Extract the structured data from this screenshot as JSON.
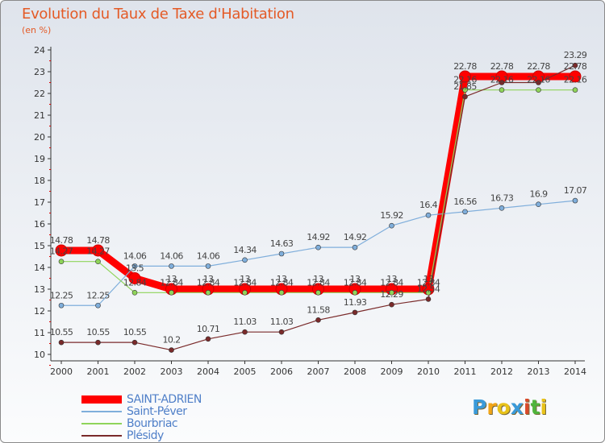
{
  "title": "Evolution du Taux de Taxe d'Habitation",
  "unit": "(en %)",
  "logo": {
    "letters": [
      "P",
      "r",
      "o",
      "x",
      "i",
      "t",
      "i"
    ],
    "colors": [
      "#3a9ad9",
      "#f2a516",
      "#e8c21a",
      "#3a9ad9",
      "#d94a2a",
      "#4fb43c",
      "#e8c21a"
    ]
  },
  "chart_data": {
    "type": "line",
    "x": [
      2000,
      2001,
      2002,
      2003,
      2004,
      2005,
      2006,
      2007,
      2008,
      2009,
      2010,
      2011,
      2012,
      2013,
      2014
    ],
    "ylim": [
      10,
      24
    ],
    "yticks": [
      10,
      11,
      12,
      13,
      14,
      15,
      16,
      17,
      18,
      19,
      20,
      21,
      22,
      23,
      24
    ],
    "grid": false,
    "legend_position": "bottom-left",
    "series": [
      {
        "name": "SAINT-ADRIEN",
        "color": "#ff0000",
        "values": [
          14.78,
          14.78,
          13.5,
          13,
          13,
          13,
          13,
          13,
          13,
          13,
          13,
          22.78,
          22.78,
          22.78,
          22.78
        ],
        "labels": [
          "14.78",
          "14.78",
          "13.5",
          "13",
          "13",
          "13",
          "13",
          "13",
          "13",
          "13",
          "13",
          "22.78",
          "22.78",
          "22.78",
          "22.78"
        ]
      },
      {
        "name": "Saint-Péver",
        "color": "#7faedb",
        "values": [
          12.25,
          12.25,
          14.06,
          14.06,
          14.06,
          14.34,
          14.63,
          14.92,
          14.92,
          15.92,
          16.4,
          16.56,
          16.73,
          16.9,
          17.07
        ],
        "labels": [
          "12.25",
          "12.25",
          "14.06",
          "14.06",
          "14.06",
          "14.34",
          "14.63",
          "14.92",
          "14.92",
          "15.92",
          "16.4",
          "16.56",
          "16.73",
          "16.9",
          "17.07"
        ]
      },
      {
        "name": "Bourbriac",
        "color": "#8fd45a",
        "values": [
          14.27,
          14.27,
          12.84,
          12.84,
          12.84,
          12.84,
          12.84,
          12.84,
          12.84,
          12.84,
          12.84,
          22.16,
          22.16,
          22.16,
          22.16
        ],
        "labels": [
          "14.27",
          "14.27",
          "12.84",
          "12.84",
          "12.84",
          "12.84",
          "12.84",
          "12.84",
          "12.84",
          "12.84",
          "12.84",
          "22.16",
          "22.16",
          "22.16",
          "22.16"
        ]
      },
      {
        "name": "Plésidy",
        "color": "#7a2a2a",
        "values": [
          10.55,
          10.55,
          10.55,
          10.2,
          10.71,
          11.03,
          11.03,
          11.58,
          11.93,
          12.29,
          12.54,
          21.85,
          22.5,
          22.5,
          23.29
        ],
        "labels": [
          "10.55",
          "10.55",
          "10.55",
          "10.2",
          "10.71",
          "11.03",
          "11.03",
          "11.58",
          "11.93",
          "12.29",
          "12.54",
          "21.85",
          "",
          "",
          "23.29"
        ]
      }
    ]
  }
}
